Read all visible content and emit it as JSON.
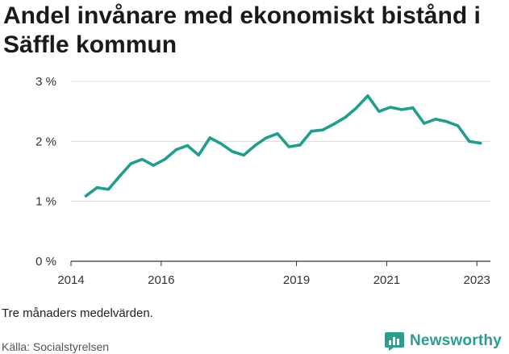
{
  "title": "Andel invånare med ekonomiskt bistånd i Säffle kommun",
  "note": "Tre månaders medelvärden.",
  "source": "Källa: Socialstyrelsen",
  "brand": {
    "name": "Newsworthy",
    "logo_icon": "bar-chart-logo-icon"
  },
  "colors": {
    "line": "#1f9e8f",
    "grid": "#d9d9d9",
    "axis": "#333333",
    "brand": "#2a9d8f"
  },
  "chart_data": {
    "type": "line",
    "title": "Andel invånare med ekonomiskt bistånd i Säffle kommun",
    "xlabel": "",
    "ylabel": "",
    "ylim": [
      0,
      3
    ],
    "xlim": [
      2014.0,
      2023.3
    ],
    "y_ticks": [
      {
        "value": 0,
        "label": "0 %"
      },
      {
        "value": 1,
        "label": "1 %"
      },
      {
        "value": 2,
        "label": "2 %"
      },
      {
        "value": 3,
        "label": "3 %"
      }
    ],
    "x_ticks": [
      {
        "value": 2014,
        "label": "2014"
      },
      {
        "value": 2016,
        "label": "2016"
      },
      {
        "value": 2019,
        "label": "2019"
      },
      {
        "value": 2021,
        "label": "2021"
      },
      {
        "value": 2023,
        "label": "2023"
      }
    ],
    "grid": true,
    "series": [
      {
        "x": [
          2014.33,
          2014.58,
          2014.83,
          2015.08,
          2015.33,
          2015.58,
          2015.83,
          2016.08,
          2016.33,
          2016.58,
          2016.83,
          2017.08,
          2017.33,
          2017.58,
          2017.83,
          2018.08,
          2018.33,
          2018.58,
          2018.83,
          2019.08,
          2019.33,
          2019.58,
          2019.83,
          2020.08,
          2020.33,
          2020.58,
          2020.83,
          2021.08,
          2021.33,
          2021.58,
          2021.83,
          2022.08,
          2022.33,
          2022.58,
          2022.83,
          2023.08
        ],
        "values": [
          1.09,
          1.23,
          1.2,
          1.42,
          1.63,
          1.7,
          1.6,
          1.7,
          1.86,
          1.93,
          1.77,
          2.06,
          1.96,
          1.83,
          1.77,
          1.93,
          2.06,
          2.13,
          1.91,
          1.94,
          2.17,
          2.19,
          2.29,
          2.4,
          2.56,
          2.76,
          2.5,
          2.57,
          2.53,
          2.56,
          2.3,
          2.37,
          2.33,
          2.26,
          2.0,
          1.97
        ]
      }
    ]
  }
}
